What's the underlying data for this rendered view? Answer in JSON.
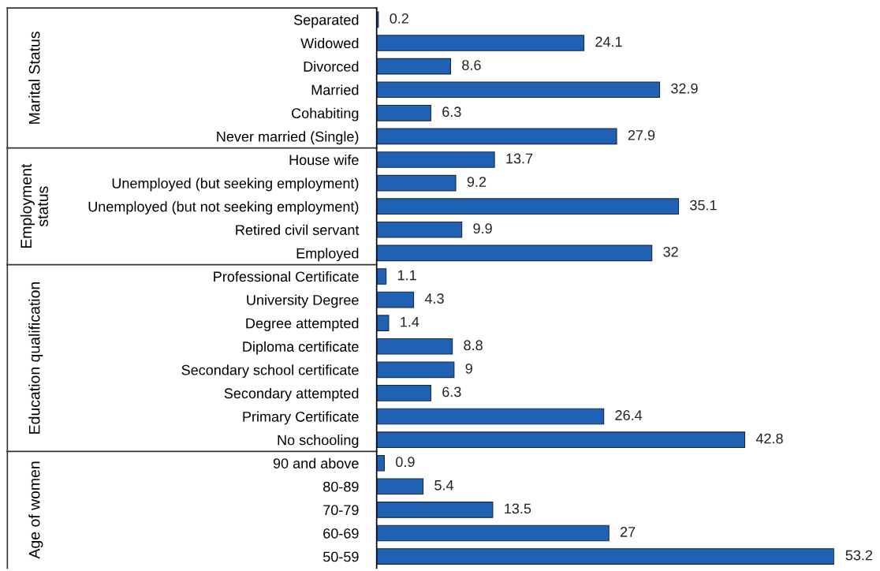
{
  "chart_data": [
    {
      "type": "bar",
      "orientation": "horizontal",
      "data_labels": true,
      "tick_labels": "y",
      "color": "#1f62b4",
      "ylabel": "Marital Status",
      "categories": [
        "Separated",
        "Widowed",
        "Divorced",
        "Married",
        "Cohabiting",
        "Never married (Single)"
      ],
      "values": [
        0.2,
        24.1,
        8.6,
        32.9,
        6.3,
        27.9
      ]
    },
    {
      "type": "bar",
      "orientation": "horizontal",
      "data_labels": true,
      "tick_labels": "y",
      "color": "#1f62b4",
      "ylabel": "Employment\nstatus",
      "categories": [
        "House wife",
        "Unemployed (but seeking employment)",
        "Unemployed (but not seeking employment)",
        "Retired civil servant",
        "Employed"
      ],
      "values": [
        13.7,
        9.2,
        35.1,
        9.9,
        32
      ]
    },
    {
      "type": "bar",
      "orientation": "horizontal",
      "data_labels": true,
      "tick_labels": "y",
      "color": "#1f62b4",
      "ylabel": "Education qualification",
      "categories": [
        "Professional Certificate",
        "University Degree",
        "Degree attempted",
        "Diploma certificate",
        "Secondary school certificate",
        "Secondary attempted",
        "Primary Certificate",
        "No schooling"
      ],
      "values": [
        1.1,
        4.3,
        1.4,
        8.8,
        9,
        6.3,
        26.4,
        42.8
      ]
    },
    {
      "type": "bar",
      "orientation": "horizontal",
      "data_labels": true,
      "tick_labels": "y",
      "color": "#1f62b4",
      "ylabel": "Age of women",
      "categories": [
        "90 and above",
        "80-89",
        "70-79",
        "60-69",
        "50-59"
      ],
      "values": [
        0.9,
        5.4,
        13.5,
        27,
        53.2
      ]
    }
  ]
}
